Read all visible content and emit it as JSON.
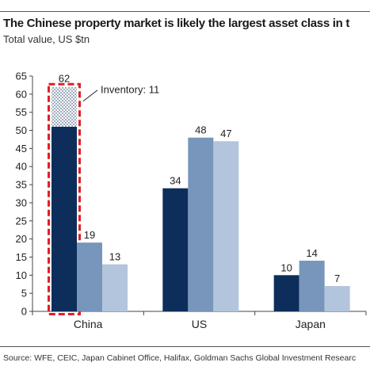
{
  "title": "The Chinese property market is likely the largest asset class in t",
  "subtitle": "Total value, US $tn",
  "source": "Source: WFE, CEIC, Japan Cabinet Office, Halifax, Goldman Sachs Global Investment Researc",
  "annotation": "Inventory: 11",
  "colors": {
    "series1": "#0d2e5b",
    "series2": "#7896bb",
    "series3": "#b3c5dc",
    "highlight": "#e21e26"
  },
  "chart_data": {
    "type": "bar",
    "categories": [
      "China",
      "US",
      "Japan"
    ],
    "series": [
      {
        "values": [
          62,
          34,
          10
        ]
      },
      {
        "values": [
          19,
          48,
          14
        ]
      },
      {
        "values": [
          13,
          47,
          7
        ]
      }
    ],
    "data_labels": [
      [
        "62",
        "19",
        "13"
      ],
      [
        "34",
        "48",
        "47"
      ],
      [
        "10",
        "14",
        "7"
      ]
    ],
    "stacked_segment": {
      "category": "China",
      "series_index": 0,
      "name": "Inventory",
      "value": 11
    },
    "ylim": [
      0,
      65
    ],
    "yticks": [
      0,
      5,
      10,
      15,
      20,
      25,
      30,
      35,
      40,
      45,
      50,
      55,
      60,
      65
    ],
    "grid": false,
    "legend": "none"
  }
}
